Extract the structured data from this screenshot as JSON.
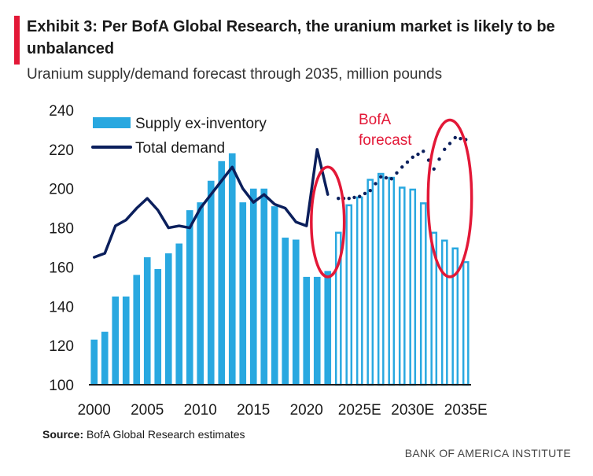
{
  "header": {
    "title": "Exhibit 3: Per BofA Global Research, the uranium market is likely to be unbalanced",
    "subtitle": "Uranium supply/demand forecast through 2035, million pounds",
    "accent_color": "#e31837"
  },
  "footer": {
    "source_label": "Source:",
    "source_text": "BofA Global Research estimates",
    "brand": "BANK OF AMERICA INSTITUTE"
  },
  "colors": {
    "bar_fill": "#29a8e0",
    "bar_forecast_stroke": "#29a8e0",
    "demand_line": "#0b1f5c",
    "highlight": "#e31837",
    "axis_text": "#1a1a1a"
  },
  "chart_data": {
    "type": "bar",
    "title": "",
    "xlabel": "",
    "ylabel": "",
    "ylim": [
      100,
      240
    ],
    "y_ticks": [
      100,
      120,
      140,
      160,
      180,
      200,
      220,
      240
    ],
    "x_tick_labels": [
      {
        "year": 2000,
        "label": "2000"
      },
      {
        "year": 2005,
        "label": "2005"
      },
      {
        "year": 2010,
        "label": "2010"
      },
      {
        "year": 2015,
        "label": "2015"
      },
      {
        "year": 2020,
        "label": "2020"
      },
      {
        "year": 2025,
        "label": "2025E"
      },
      {
        "year": 2030,
        "label": "2030E"
      },
      {
        "year": 2035,
        "label": "2035E"
      }
    ],
    "years": [
      2000,
      2001,
      2002,
      2003,
      2004,
      2005,
      2006,
      2007,
      2008,
      2009,
      2010,
      2011,
      2012,
      2013,
      2014,
      2015,
      2016,
      2017,
      2018,
      2019,
      2020,
      2021,
      2022,
      2023,
      2024,
      2025,
      2026,
      2027,
      2028,
      2029,
      2030,
      2031,
      2032,
      2033,
      2034,
      2035
    ],
    "forecast_start_year": 2023,
    "series": [
      {
        "name": "Supply ex-inventory",
        "kind": "bar",
        "values": [
          123,
          127,
          145,
          145,
          156,
          165,
          159,
          167,
          172,
          189,
          193,
          204,
          214,
          218,
          193,
          200,
          200,
          191,
          175,
          174,
          155,
          155,
          158,
          178,
          192,
          196,
          205,
          208,
          206,
          201,
          200,
          193,
          178,
          174,
          170,
          163
        ]
      },
      {
        "name": "Total demand",
        "kind": "line",
        "historical_years": [
          2000,
          2001,
          2002,
          2003,
          2004,
          2005,
          2006,
          2007,
          2008,
          2009,
          2010,
          2011,
          2012,
          2013,
          2014,
          2015,
          2016,
          2017,
          2018,
          2019,
          2020,
          2021,
          2022
        ],
        "historical_values": [
          165,
          167,
          181,
          184,
          190,
          195,
          189,
          180,
          181,
          180,
          190,
          197,
          204,
          211,
          200,
          193,
          197,
          192,
          190,
          183,
          181,
          220,
          197
        ],
        "forecast_years": [
          2023,
          2024,
          2025,
          2026,
          2027,
          2028,
          2029,
          2030,
          2031,
          2032,
          2033,
          2034,
          2035
        ],
        "forecast_values": [
          195,
          195,
          196,
          199,
          206,
          205,
          211,
          216,
          219,
          210,
          220,
          226,
          225
        ]
      }
    ],
    "legend": {
      "position": "top-left",
      "entries": [
        "Supply ex-inventory",
        "Total demand"
      ]
    },
    "annotations": [
      {
        "text": "BofA forecast",
        "line1": "BofA",
        "line2": "forecast",
        "color": "#e31837"
      }
    ],
    "highlight_ellipses": [
      {
        "around_years": [
          2021,
          2023
        ],
        "y_range": [
          155,
          211
        ]
      },
      {
        "around_years": [
          2032,
          2035
        ],
        "y_range": [
          155,
          235
        ]
      }
    ]
  }
}
